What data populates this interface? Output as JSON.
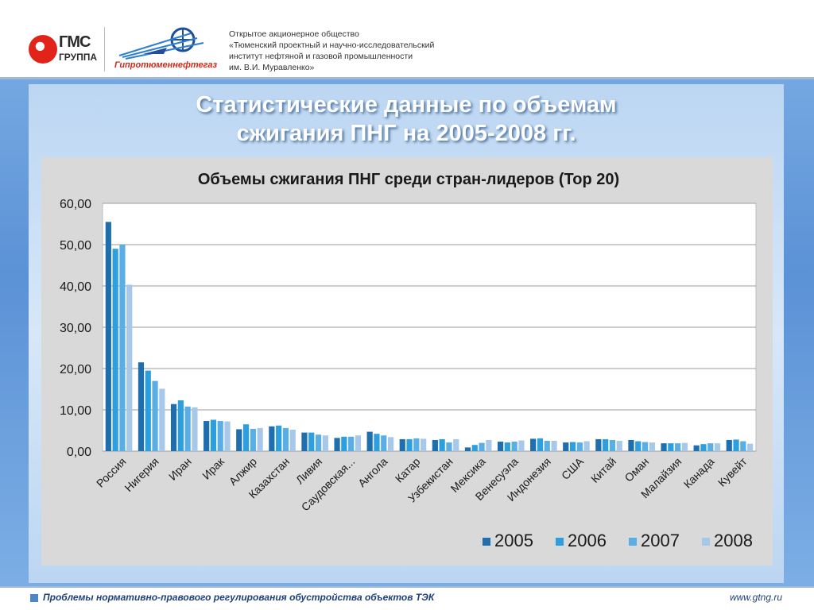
{
  "header": {
    "gms_name": "ГМС",
    "gms_group": "ГРУППА",
    "gipro_name": "Гипротюменнефтегаз",
    "company_lines": [
      "Открытое акционерное общество",
      "«Тюменский проектный и научно-исследовательский",
      "институт нефтяной и газовой промышленности",
      "им. В.И. Муравленко»"
    ]
  },
  "slide": {
    "title_lines": [
      "Статистические данные по объемам",
      "сжигания ПНГ на 2005-2008 гг."
    ]
  },
  "footer": {
    "text": "Проблемы нормативно-правового регулирования обустройства объектов ТЭК",
    "url": "www.gtng.ru"
  },
  "colors": {
    "s2005": "#1f6fae",
    "s2006": "#2e9fde",
    "s2007": "#5aaee6",
    "s2008": "#a8c8ea"
  },
  "chart_data": {
    "type": "bar",
    "title": "Объемы сжигания ПНГ среди стран-лидеров (Top 20)",
    "xlabel": "",
    "ylabel": "",
    "ylim": [
      0,
      60
    ],
    "yticks": [
      "0,00",
      "10,00",
      "20,00",
      "30,00",
      "40,00",
      "50,00",
      "60,00"
    ],
    "grid": true,
    "legend_position": "bottom-right",
    "categories": [
      "Россия",
      "Нигерия",
      "Иран",
      "Ирак",
      "Алжир",
      "Казахстан",
      "Ливия",
      "Саудовская...",
      "Ангола",
      "Катар",
      "Узбекистан",
      "Мексика",
      "Венесуэла",
      "Индонезия",
      "США",
      "Китай",
      "Оман",
      "Малайзия",
      "Канада",
      "Кувейт"
    ],
    "series": [
      {
        "name": "2005",
        "values": [
          55.5,
          21.5,
          11.4,
          7.3,
          5.3,
          6.0,
          4.5,
          3.2,
          4.7,
          2.9,
          2.7,
          0.9,
          2.3,
          3.0,
          2.1,
          2.9,
          2.7,
          1.9,
          1.4,
          2.7
        ]
      },
      {
        "name": "2006",
        "values": [
          49.0,
          19.5,
          12.3,
          7.6,
          6.5,
          6.2,
          4.5,
          3.5,
          4.2,
          2.9,
          2.9,
          1.5,
          2.1,
          3.1,
          2.2,
          2.9,
          2.4,
          1.9,
          1.7,
          2.8
        ]
      },
      {
        "name": "2007",
        "values": [
          50.0,
          17.0,
          10.8,
          7.3,
          5.4,
          5.6,
          4.0,
          3.5,
          3.8,
          3.1,
          2.1,
          2.0,
          2.3,
          2.5,
          2.1,
          2.7,
          2.2,
          1.9,
          1.9,
          2.4
        ]
      },
      {
        "name": "2008",
        "values": [
          40.3,
          15.1,
          10.6,
          7.2,
          5.6,
          5.2,
          3.8,
          3.8,
          3.4,
          3.0,
          2.9,
          2.7,
          2.6,
          2.5,
          2.4,
          2.5,
          2.1,
          2.0,
          1.9,
          1.8
        ]
      }
    ]
  }
}
